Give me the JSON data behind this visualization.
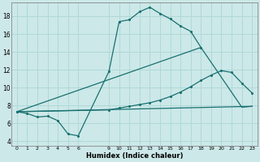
{
  "xlabel": "Humidex (Indice chaleur)",
  "bg_color": "#cce8e8",
  "grid_color": "#b0d8d8",
  "line_color": "#1a7070",
  "xlim": [
    -0.5,
    23.5
  ],
  "ylim": [
    3.5,
    19.5
  ],
  "xticks": [
    0,
    1,
    2,
    3,
    4,
    5,
    6,
    9,
    10,
    11,
    12,
    13,
    14,
    15,
    16,
    17,
    18,
    19,
    20,
    21,
    22,
    23
  ],
  "yticks": [
    4,
    6,
    8,
    10,
    12,
    14,
    16,
    18
  ],
  "line1_x": [
    0,
    1,
    2,
    3,
    4,
    5,
    6,
    9,
    10,
    11,
    12,
    13,
    14,
    15,
    16,
    17,
    18
  ],
  "line1_y": [
    7.3,
    7.1,
    6.7,
    6.8,
    6.3,
    4.8,
    4.6,
    11.8,
    17.4,
    17.6,
    18.5,
    19.0,
    18.3,
    17.7,
    16.9,
    16.3,
    14.5
  ],
  "line2_x": [
    0,
    18,
    22,
    23
  ],
  "line2_y": [
    7.3,
    14.5,
    7.8,
    7.9
  ],
  "line3_x": [
    0,
    9,
    10,
    11,
    12,
    13,
    14,
    15,
    16,
    17,
    18,
    19,
    20,
    21,
    22,
    23
  ],
  "line3_y": [
    7.3,
    7.5,
    7.7,
    7.9,
    8.1,
    8.3,
    8.6,
    9.0,
    9.5,
    10.1,
    10.8,
    11.4,
    11.9,
    11.7,
    10.5,
    9.4
  ],
  "line4_x": [
    0,
    23
  ],
  "line4_y": [
    7.3,
    7.9
  ]
}
